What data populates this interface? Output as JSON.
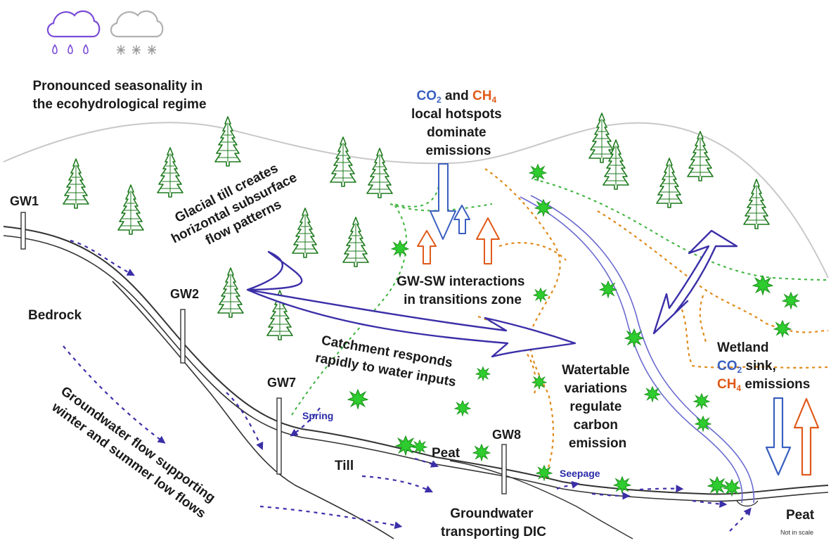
{
  "labels": {
    "seasonality": [
      "Pronounced seasonality in",
      "the ecohydrological regime"
    ],
    "glacial": [
      "Glacial till creates",
      "horizontal subsurface",
      "flow patterns"
    ],
    "hotspots_gas_co2": "CO",
    "hotspots_gas_sub": "2",
    "hotspots_and": " and ",
    "hotspots_gas_ch4": "CH",
    "hotspots_gas_sub4": "4",
    "hotspots_rest": [
      "local hotspots",
      "dominate",
      "emissions"
    ],
    "gwsw": [
      "GW-SW interactions",
      "in transitions zone"
    ],
    "catchment": [
      "Catchment responds",
      "rapidly to water inputs"
    ],
    "watertable": [
      "Watertable",
      "variations",
      "regulate",
      "carbon",
      "emission"
    ],
    "wetland_title": "Wetland",
    "wetland_co2": "CO",
    "wetland_co2_sub": "2",
    "wetland_co2_rest": " sink,",
    "wetland_ch4": "CH",
    "wetland_ch4_sub": "4",
    "wetland_ch4_rest": " emissions",
    "bedrock": "Bedrock",
    "gw_flow": [
      "Groundwater flow supporting",
      "winter and summer low flows"
    ],
    "till": "Till",
    "peat_mid": "Peat",
    "peat_right": "Peat",
    "groundwater_dic": [
      "Groundwater",
      "transporting DIC"
    ],
    "spring": "Spring",
    "seepage": "Seepage",
    "not_in_scale": "Not in scale",
    "wells": [
      "GW1",
      "GW2",
      "GW7",
      "GW8"
    ]
  },
  "colors": {
    "co2": "#3a5fc0",
    "ch4": "#e05a1a",
    "flow_arrow": "#3b2fa8",
    "tree": "#1e7a1e",
    "shrub": "#28b428",
    "green_dash": "#3cb43c",
    "orange_dash": "#e08a1a"
  },
  "icons": [
    "rain-cloud-icon",
    "snow-cloud-icon"
  ]
}
